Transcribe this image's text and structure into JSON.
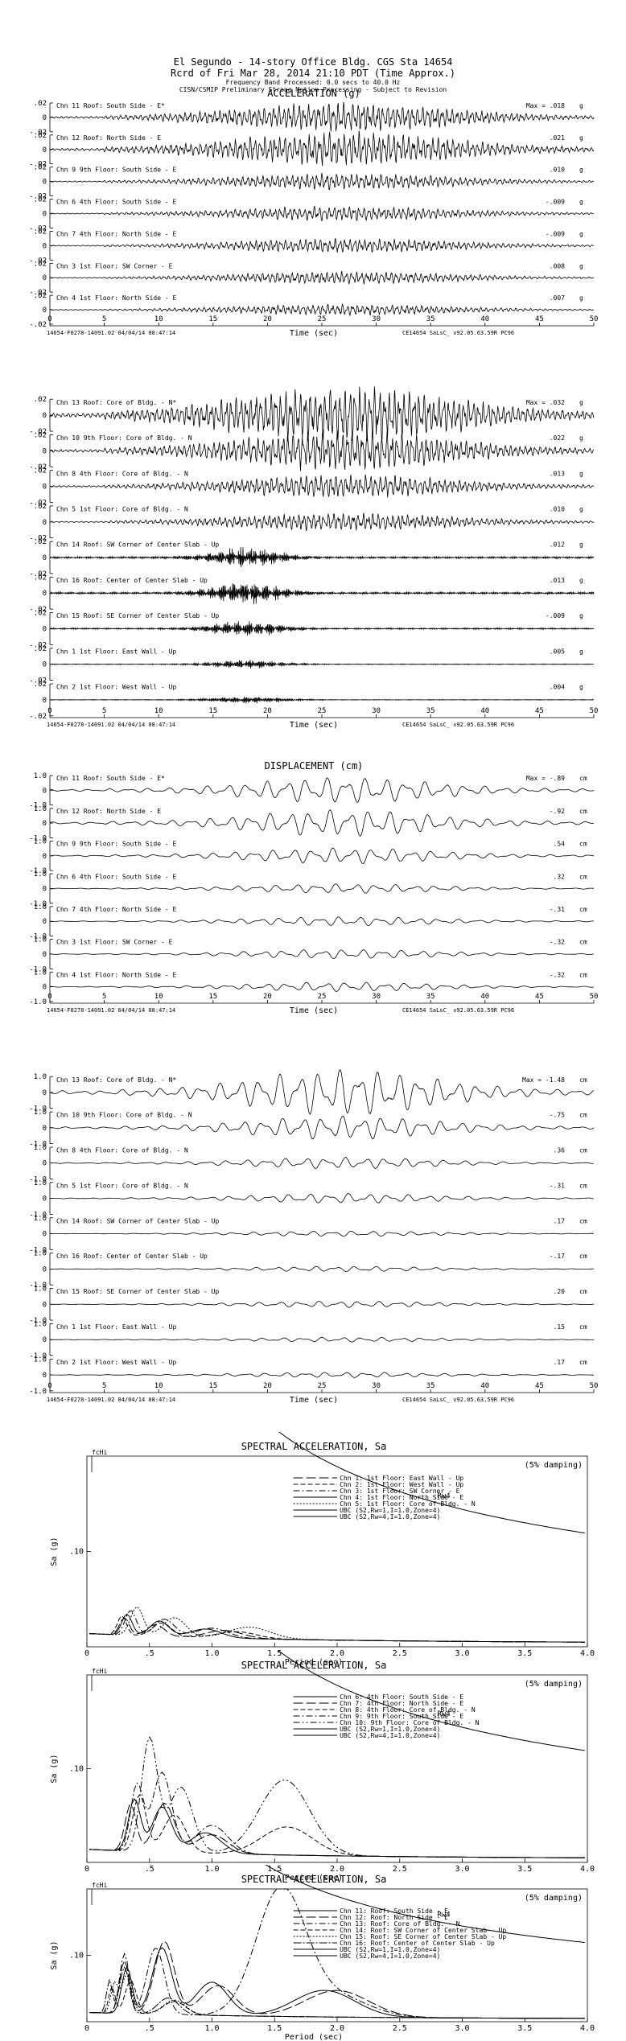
{
  "header": {
    "line1": "El Segundo - 14-story Office Bldg.        CGS Sta 14654",
    "line2": "Rcrd of Fri Mar 28, 2014 21:10 PDT (Time Approx.)",
    "line3": "Frequency Band Processed: 0.0 secs to 40.0 Hz",
    "line4": "CISN/CSMIP Preliminary Strong Motion Processing - Subject to Revision"
  },
  "footer_left": "14654-F0278-14091.02 04/04/14 08:47:14",
  "footer_right": "CE14654  SaLsC_  v92.05.63.59R PC96",
  "time_label": "Time (sec)",
  "time_ticks": [
    "0",
    "5",
    "10",
    "15",
    "20",
    "25",
    "30",
    "35",
    "40",
    "45",
    "50"
  ],
  "accel_title": "ACCELERATION (g)",
  "disp_title": "DISPLACEMENT (cm)",
  "chart_data": [
    {
      "type": "line",
      "title": "ACCELERATION (g)",
      "xlabel": "Time (sec)",
      "xlim": [
        0,
        50
      ],
      "unit": "g",
      "tick_label": ".02",
      "ylim": [
        -0.02,
        0.02
      ],
      "channels": [
        {
          "label": "Chn 11  Roof: South Side - E*",
          "max": "Max = .018",
          "amp": 0.018,
          "seed": 11
        },
        {
          "label": "Chn 12  Roof: North Side - E",
          "max": ".021",
          "amp": 0.021,
          "seed": 12
        },
        {
          "label": "Chn 9  9th Floor: South Side - E",
          "max": ".010",
          "amp": 0.01,
          "seed": 9
        },
        {
          "label": "Chn 6  4th Floor: South Side - E",
          "max": "-.009",
          "amp": 0.009,
          "seed": 6
        },
        {
          "label": "Chn 7  4th Floor: North Side - E",
          "max": "-.009",
          "amp": 0.009,
          "seed": 7
        },
        {
          "label": "Chn 3  1st Floor: SW Corner - E",
          "max": ".008",
          "amp": 0.008,
          "seed": 3
        },
        {
          "label": "Chn 4  1st Floor: North Side - E",
          "max": ".007",
          "amp": 0.007,
          "seed": 4
        }
      ]
    },
    {
      "type": "line",
      "xlabel": "Time (sec)",
      "xlim": [
        0,
        50
      ],
      "unit": "g",
      "tick_label": ".02",
      "ylim": [
        -0.02,
        0.02
      ],
      "channels": [
        {
          "label": "Chn 13  Roof: Core of Bldg. - N*",
          "max": "Max = .032",
          "amp": 0.032,
          "seed": 13
        },
        {
          "label": "Chn 10  9th Floor: Core of Bldg. - N",
          "max": ".022",
          "amp": 0.022,
          "seed": 10
        },
        {
          "label": "Chn 8  4th Floor: Core of Bldg. - N",
          "max": ".013",
          "amp": 0.013,
          "seed": 8
        },
        {
          "label": "Chn 5  1st Floor: Core of Bldg. - N",
          "max": ".010",
          "amp": 0.01,
          "seed": 5
        },
        {
          "label": "Chn 14  Roof: SW Corner of Center Slab - Up",
          "max": ".012",
          "amp": 0.012,
          "seed": 14,
          "hf": true
        },
        {
          "label": "Chn 16  Roof: Center of Center Slab - Up",
          "max": ".013",
          "amp": 0.013,
          "seed": 16,
          "hf": true
        },
        {
          "label": "Chn 15  Roof: SE Corner of Center Slab - Up",
          "max": "-.009",
          "amp": 0.009,
          "seed": 15,
          "hf": true
        },
        {
          "label": "Chn 1  1st Floor: East Wall - Up",
          "max": ".005",
          "amp": 0.005,
          "seed": 1,
          "hf": true
        },
        {
          "label": "Chn 2  1st Floor: West Wall - Up",
          "max": ".004",
          "amp": 0.004,
          "seed": 2,
          "hf": true
        }
      ]
    },
    {
      "type": "line",
      "title": "DISPLACEMENT (cm)",
      "xlabel": "Time (sec)",
      "xlim": [
        0,
        50
      ],
      "unit": "cm",
      "tick_label": "1.0",
      "ylim": [
        -1.0,
        1.0
      ],
      "channels": [
        {
          "label": "Chn 11  Roof: South Side - E*",
          "max": "Max = -.89",
          "amp": 0.89,
          "seed": 21
        },
        {
          "label": "Chn 12  Roof: North Side - E",
          "max": "-.92",
          "amp": 0.92,
          "seed": 22
        },
        {
          "label": "Chn 9  9th Floor: South Side - E",
          "max": ".54",
          "amp": 0.54,
          "seed": 23
        },
        {
          "label": "Chn 6  4th Floor: South Side - E",
          "max": ".32",
          "amp": 0.32,
          "seed": 24
        },
        {
          "label": "Chn 7  4th Floor: North Side - E",
          "max": "-.31",
          "amp": 0.31,
          "seed": 25
        },
        {
          "label": "Chn 3  1st Floor: SW Corner - E",
          "max": "-.32",
          "amp": 0.32,
          "seed": 26
        },
        {
          "label": "Chn 4  1st Floor: North Side - E",
          "max": "-.32",
          "amp": 0.32,
          "seed": 27
        }
      ]
    },
    {
      "type": "line",
      "xlabel": "Time (sec)",
      "xlim": [
        0,
        50
      ],
      "unit": "cm",
      "tick_label": "1.0",
      "ylim": [
        -1.0,
        1.0
      ],
      "channels": [
        {
          "label": "Chn 13  Roof: Core of Bldg. - N*",
          "max": "Max = -1.48",
          "amp": 1.48,
          "seed": 31
        },
        {
          "label": "Chn 10  9th Floor: Core of Bldg. - N",
          "max": "-.75",
          "amp": 0.75,
          "seed": 32
        },
        {
          "label": "Chn 8  4th Floor: Core of Bldg. - N",
          "max": ".36",
          "amp": 0.36,
          "seed": 33
        },
        {
          "label": "Chn 5  1st Floor: Core of Bldg. - N",
          "max": "-.31",
          "amp": 0.31,
          "seed": 34
        },
        {
          "label": "Chn 14  Roof: SW Corner of Center Slab - Up",
          "max": ".17",
          "amp": 0.17,
          "seed": 35
        },
        {
          "label": "Chn 16  Roof: Center of Center Slab - Up",
          "max": "-.17",
          "amp": 0.17,
          "seed": 36
        },
        {
          "label": "Chn 15  Roof: SE Corner of Center Slab - Up",
          "max": ".20",
          "amp": 0.2,
          "seed": 37
        },
        {
          "label": "Chn 1  1st Floor: East Wall - Up",
          "max": ".15",
          "amp": 0.15,
          "seed": 38
        },
        {
          "label": "Chn 2  1st Floor: West Wall - Up",
          "max": ".17",
          "amp": 0.17,
          "seed": 39
        }
      ]
    },
    {
      "type": "line",
      "title": "SPECTRAL ACCELERATION, Sa",
      "xlabel": "Period (sec)",
      "ylabel": "Sa (g)",
      "xlim": [
        0,
        4
      ],
      "ylim": [
        0,
        0.2
      ],
      "xticks": [
        "0",
        ".5",
        "1.0",
        "1.5",
        "2.0",
        "2.5",
        "3.0",
        "3.5",
        "4.0"
      ],
      "ytick": ".10",
      "damping": "(5% damping)",
      "fchi": "fcHi",
      "rw": "Rw4",
      "series": [
        {
          "name": "Chn 1: 1st Floor: East Wall - Up",
          "dash": "12,4",
          "peaks": [
            [
              0.3,
              0.018
            ],
            [
              0.55,
              0.012
            ],
            [
              1.1,
              0.008
            ]
          ]
        },
        {
          "name": "Chn 2: 1st Floor: West Wall - Up",
          "dash": "6,3",
          "peaks": [
            [
              0.28,
              0.02
            ],
            [
              0.6,
              0.014
            ],
            [
              1.2,
              0.007
            ]
          ]
        },
        {
          "name": "Chn 3: 1st Floor: SW Corner - E",
          "dash": "8,3,2,3",
          "peaks": [
            [
              0.35,
              0.026
            ],
            [
              0.62,
              0.018
            ],
            [
              1.0,
              0.01
            ]
          ]
        },
        {
          "name": "Chn 4: 1st Floor: North Side - E",
          "dash": "",
          "peaks": [
            [
              0.32,
              0.022
            ],
            [
              0.58,
              0.016
            ],
            [
              0.95,
              0.009
            ]
          ]
        },
        {
          "name": "Chn 5: 1st Floor: Core of Bldg. - N",
          "dash": "2,2",
          "peaks": [
            [
              0.4,
              0.03
            ],
            [
              0.7,
              0.02
            ],
            [
              1.3,
              0.012
            ]
          ]
        }
      ],
      "ubc_labels": [
        "UBC (S2,Rw=1,I=1.0,Zone=4)",
        "UBC (S2,Rw=4,I=1.0,Zone=4)"
      ]
    },
    {
      "type": "line",
      "title": "SPECTRAL ACCELERATION, Sa",
      "xlabel": "Period (sec)",
      "ylabel": "Sa (g)",
      "xlim": [
        0,
        4
      ],
      "ylim": [
        0,
        0.2
      ],
      "xticks": [
        "0",
        ".5",
        "1.0",
        "1.5",
        "2.0",
        "2.5",
        "3.0",
        "3.5",
        "4.0"
      ],
      "ytick": ".10",
      "damping": "(5% damping)",
      "fchi": "fcHi",
      "rw": "Rw4",
      "series": [
        {
          "name": "Chn 6: 4th Floor: South Side - E",
          "dash": "",
          "peaks": [
            [
              0.38,
              0.055
            ],
            [
              0.6,
              0.048
            ],
            [
              0.95,
              0.022
            ]
          ]
        },
        {
          "name": "Chn 7: 4th Floor: North Side - E",
          "dash": "12,4",
          "peaks": [
            [
              0.35,
              0.05
            ],
            [
              0.62,
              0.052
            ],
            [
              1.0,
              0.02
            ]
          ]
        },
        {
          "name": "Chn 8: 4th Floor: Core of Bldg. - N",
          "dash": "6,3",
          "peaks": [
            [
              0.42,
              0.06
            ],
            [
              0.7,
              0.04
            ],
            [
              1.6,
              0.03
            ]
          ]
        },
        {
          "name": "Chn 9: 9th Floor: South Side - E",
          "dash": "8,3,2,3",
          "peaks": [
            [
              0.4,
              0.07
            ],
            [
              0.6,
              0.085
            ],
            [
              1.0,
              0.03
            ]
          ]
        },
        {
          "name": "Chn 10: 9th Floor: Core of Bldg. - N",
          "dash": "8,3,2,3,2,3",
          "peaks": [
            [
              0.5,
              0.12
            ],
            [
              0.75,
              0.07
            ],
            [
              1.58,
              0.08
            ]
          ]
        }
      ],
      "ubc_labels": [
        "UBC (S2,Rw=1,I=1.0,Zone=4)",
        "UBC (S2,Rw=4,I=1.0,Zone=4)"
      ]
    },
    {
      "type": "line",
      "title": "SPECTRAL ACCELERATION, Sa",
      "xlabel": "Period (sec)",
      "ylabel": "Sa (g)",
      "xlim": [
        0,
        4
      ],
      "ylim": [
        0,
        0.2
      ],
      "xticks": [
        "0",
        ".5",
        "1.0",
        "1.5",
        "2.0",
        "2.5",
        "3.0",
        "3.5",
        "4.0"
      ],
      "ytick": ".10",
      "damping": "(5% damping)",
      "fchi": "fcHi",
      "rw": "Rw4",
      "series": [
        {
          "name": "Chn 11: Roof: South Side - E",
          "dash": "",
          "peaks": [
            [
              0.32,
              0.07
            ],
            [
              0.6,
              0.1
            ],
            [
              1.0,
              0.05
            ],
            [
              1.9,
              0.04
            ]
          ]
        },
        {
          "name": "Chn 12: Roof: North Side - E",
          "dash": "12,4",
          "peaks": [
            [
              0.3,
              0.08
            ],
            [
              0.62,
              0.11
            ],
            [
              1.05,
              0.045
            ],
            [
              2.0,
              0.04
            ]
          ]
        },
        {
          "name": "Chn 13: Roof: Core of Bldg. - N",
          "dash": "8,3,2,3",
          "peaks": [
            [
              0.3,
              0.09
            ],
            [
              0.55,
              0.1
            ],
            [
              1.55,
              0.19
            ],
            [
              2.0,
              0.03
            ]
          ]
        },
        {
          "name": "Chn 14: Roof: SW Corner of Center Slab - Up",
          "dash": "6,3",
          "peaks": [
            [
              0.2,
              0.04
            ],
            [
              0.35,
              0.05
            ],
            [
              0.7,
              0.02
            ]
          ]
        },
        {
          "name": "Chn 15: Roof: SE Corner of Center Slab - Up",
          "dash": "2,2",
          "peaks": [
            [
              0.22,
              0.045
            ],
            [
              0.32,
              0.06
            ],
            [
              0.7,
              0.022
            ]
          ]
        },
        {
          "name": "Chn 16: Roof: Center of Center Slab - Up",
          "dash": "10,2,2,2",
          "peaks": [
            [
              0.18,
              0.05
            ],
            [
              0.3,
              0.07
            ],
            [
              0.65,
              0.025
            ]
          ]
        }
      ],
      "ubc_labels": [
        "UBC (S2,Rw=1,I=1.0,Zone=4)",
        "UBC (S2,Rw=4,I=1.0,Zone=4)"
      ]
    }
  ]
}
